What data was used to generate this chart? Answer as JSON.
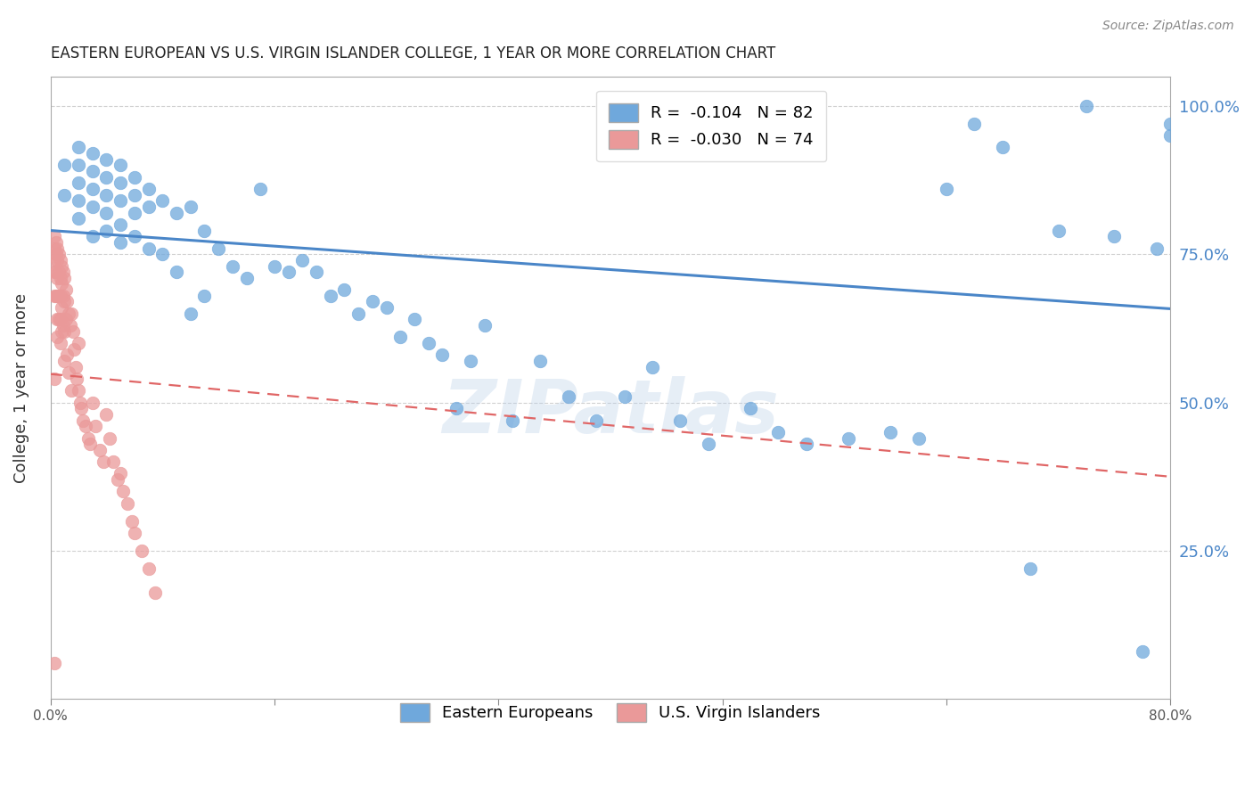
{
  "title": "EASTERN EUROPEAN VS U.S. VIRGIN ISLANDER COLLEGE, 1 YEAR OR MORE CORRELATION CHART",
  "source": "Source: ZipAtlas.com",
  "ylabel": "College, 1 year or more",
  "right_ytick_labels": [
    "100.0%",
    "75.0%",
    "50.0%",
    "25.0%"
  ],
  "right_ytick_values": [
    1.0,
    0.75,
    0.5,
    0.25
  ],
  "xlim": [
    0.0,
    0.8
  ],
  "ylim": [
    0.0,
    1.05
  ],
  "xtick_labels": [
    "0.0%",
    "",
    "",
    "",
    "",
    "80.0%"
  ],
  "xtick_values": [
    0.0,
    0.16,
    0.32,
    0.48,
    0.64,
    0.8
  ],
  "background_color": "#ffffff",
  "grid_color": "#cccccc",
  "blue_color": "#6fa8dc",
  "pink_color": "#ea9999",
  "blue_line_color": "#4a86c8",
  "pink_line_color": "#e06666",
  "watermark": "ZIPatlas",
  "blue_scatter_x": [
    0.01,
    0.01,
    0.02,
    0.02,
    0.02,
    0.02,
    0.02,
    0.03,
    0.03,
    0.03,
    0.03,
    0.03,
    0.04,
    0.04,
    0.04,
    0.04,
    0.04,
    0.05,
    0.05,
    0.05,
    0.05,
    0.05,
    0.06,
    0.06,
    0.06,
    0.06,
    0.07,
    0.07,
    0.07,
    0.08,
    0.08,
    0.09,
    0.09,
    0.1,
    0.1,
    0.11,
    0.11,
    0.12,
    0.13,
    0.14,
    0.15,
    0.16,
    0.17,
    0.18,
    0.19,
    0.2,
    0.21,
    0.22,
    0.23,
    0.24,
    0.25,
    0.26,
    0.27,
    0.28,
    0.29,
    0.3,
    0.31,
    0.33,
    0.35,
    0.37,
    0.39,
    0.41,
    0.43,
    0.45,
    0.47,
    0.5,
    0.52,
    0.54,
    0.57,
    0.6,
    0.62,
    0.64,
    0.66,
    0.68,
    0.7,
    0.72,
    0.74,
    0.76,
    0.78,
    0.79,
    0.8,
    0.8
  ],
  "blue_scatter_y": [
    0.9,
    0.85,
    0.93,
    0.9,
    0.87,
    0.84,
    0.81,
    0.92,
    0.89,
    0.86,
    0.83,
    0.78,
    0.91,
    0.88,
    0.85,
    0.82,
    0.79,
    0.9,
    0.87,
    0.84,
    0.8,
    0.77,
    0.88,
    0.85,
    0.82,
    0.78,
    0.86,
    0.83,
    0.76,
    0.84,
    0.75,
    0.82,
    0.72,
    0.83,
    0.65,
    0.79,
    0.68,
    0.76,
    0.73,
    0.71,
    0.86,
    0.73,
    0.72,
    0.74,
    0.72,
    0.68,
    0.69,
    0.65,
    0.67,
    0.66,
    0.61,
    0.64,
    0.6,
    0.58,
    0.49,
    0.57,
    0.63,
    0.47,
    0.57,
    0.51,
    0.47,
    0.51,
    0.56,
    0.47,
    0.43,
    0.49,
    0.45,
    0.43,
    0.44,
    0.45,
    0.44,
    0.86,
    0.97,
    0.93,
    0.22,
    0.79,
    1.0,
    0.78,
    0.08,
    0.76,
    0.97,
    0.95
  ],
  "pink_scatter_x": [
    0.003,
    0.003,
    0.003,
    0.003,
    0.003,
    0.004,
    0.004,
    0.004,
    0.004,
    0.005,
    0.005,
    0.005,
    0.005,
    0.005,
    0.005,
    0.006,
    0.006,
    0.006,
    0.006,
    0.007,
    0.007,
    0.007,
    0.007,
    0.007,
    0.008,
    0.008,
    0.008,
    0.008,
    0.009,
    0.009,
    0.009,
    0.01,
    0.01,
    0.01,
    0.01,
    0.011,
    0.011,
    0.012,
    0.012,
    0.013,
    0.013,
    0.014,
    0.015,
    0.015,
    0.016,
    0.017,
    0.018,
    0.019,
    0.02,
    0.02,
    0.021,
    0.022,
    0.023,
    0.025,
    0.027,
    0.028,
    0.03,
    0.032,
    0.035,
    0.038,
    0.04,
    0.042,
    0.045,
    0.048,
    0.05,
    0.052,
    0.055,
    0.058,
    0.06,
    0.065,
    0.07,
    0.075,
    0.003,
    0.003
  ],
  "pink_scatter_y": [
    0.78,
    0.76,
    0.74,
    0.72,
    0.68,
    0.77,
    0.75,
    0.72,
    0.68,
    0.76,
    0.74,
    0.71,
    0.68,
    0.64,
    0.61,
    0.75,
    0.72,
    0.68,
    0.64,
    0.74,
    0.71,
    0.68,
    0.64,
    0.6,
    0.73,
    0.7,
    0.66,
    0.62,
    0.72,
    0.68,
    0.63,
    0.71,
    0.67,
    0.62,
    0.57,
    0.69,
    0.64,
    0.67,
    0.58,
    0.65,
    0.55,
    0.63,
    0.65,
    0.52,
    0.62,
    0.59,
    0.56,
    0.54,
    0.6,
    0.52,
    0.5,
    0.49,
    0.47,
    0.46,
    0.44,
    0.43,
    0.5,
    0.46,
    0.42,
    0.4,
    0.48,
    0.44,
    0.4,
    0.37,
    0.38,
    0.35,
    0.33,
    0.3,
    0.28,
    0.25,
    0.22,
    0.18,
    0.54,
    0.06
  ],
  "blue_trendline_x": [
    0.0,
    0.8
  ],
  "blue_trendline_y": [
    0.79,
    0.658
  ],
  "pink_trendline_x": [
    0.0,
    0.8
  ],
  "pink_trendline_y": [
    0.548,
    0.375
  ],
  "legend_blue_label": "Eastern Europeans",
  "legend_pink_label": "U.S. Virgin Islanders"
}
